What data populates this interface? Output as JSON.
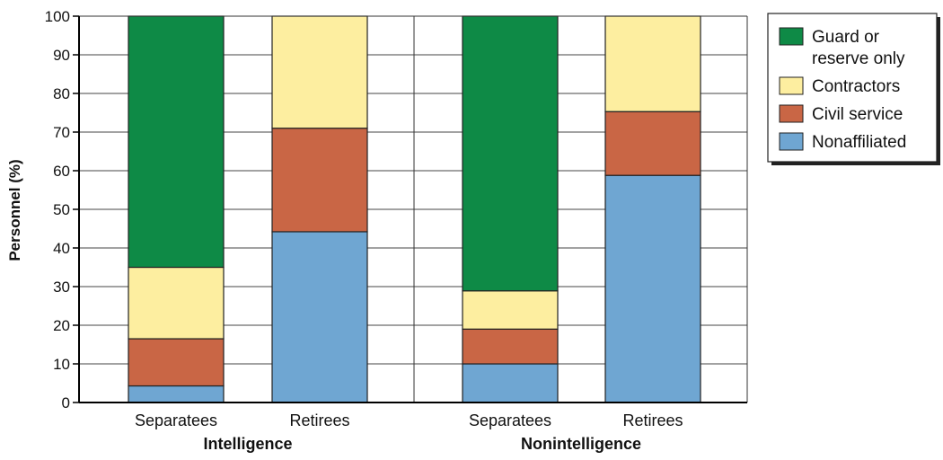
{
  "chart_data": {
    "type": "bar",
    "stacked": true,
    "title": "",
    "xlabel": "",
    "ylabel": "Personnel (%)",
    "ylim": [
      0,
      100
    ],
    "yticks": [
      0,
      10,
      20,
      30,
      40,
      50,
      60,
      70,
      80,
      90,
      100
    ],
    "grid": true,
    "legend_position": "top-right",
    "groups": [
      {
        "label": "Intelligence",
        "categories": [
          "Separatees",
          "Retirees"
        ]
      },
      {
        "label": "Nonintelligence",
        "categories": [
          "Separatees",
          "Retirees"
        ]
      }
    ],
    "categories": [
      "Separatees",
      "Retirees",
      "Separatees",
      "Retirees"
    ],
    "series": [
      {
        "name": "Nonaffiliated",
        "color": "#6fa6d2",
        "values": [
          4.3,
          44.2,
          10,
          58.8
        ]
      },
      {
        "name": "Civil service",
        "color": "#c96645",
        "values": [
          12.2,
          26.8,
          9,
          16.5
        ]
      },
      {
        "name": "Contractors",
        "color": "#fdeea0",
        "values": [
          18.5,
          29,
          9.9,
          24.7
        ]
      },
      {
        "name": "Guard or reserve only",
        "color": "#0e8a46",
        "values": [
          65,
          0,
          71.1,
          0
        ]
      }
    ],
    "legend": [
      {
        "lines": [
          "Guard or",
          "reserve only"
        ],
        "color": "#0e8a46"
      },
      {
        "lines": [
          "Contractors"
        ],
        "color": "#fdeea0"
      },
      {
        "lines": [
          "Civil service"
        ],
        "color": "#c96645"
      },
      {
        "lines": [
          "Nonaffiliated"
        ],
        "color": "#6fa6d2"
      }
    ]
  }
}
